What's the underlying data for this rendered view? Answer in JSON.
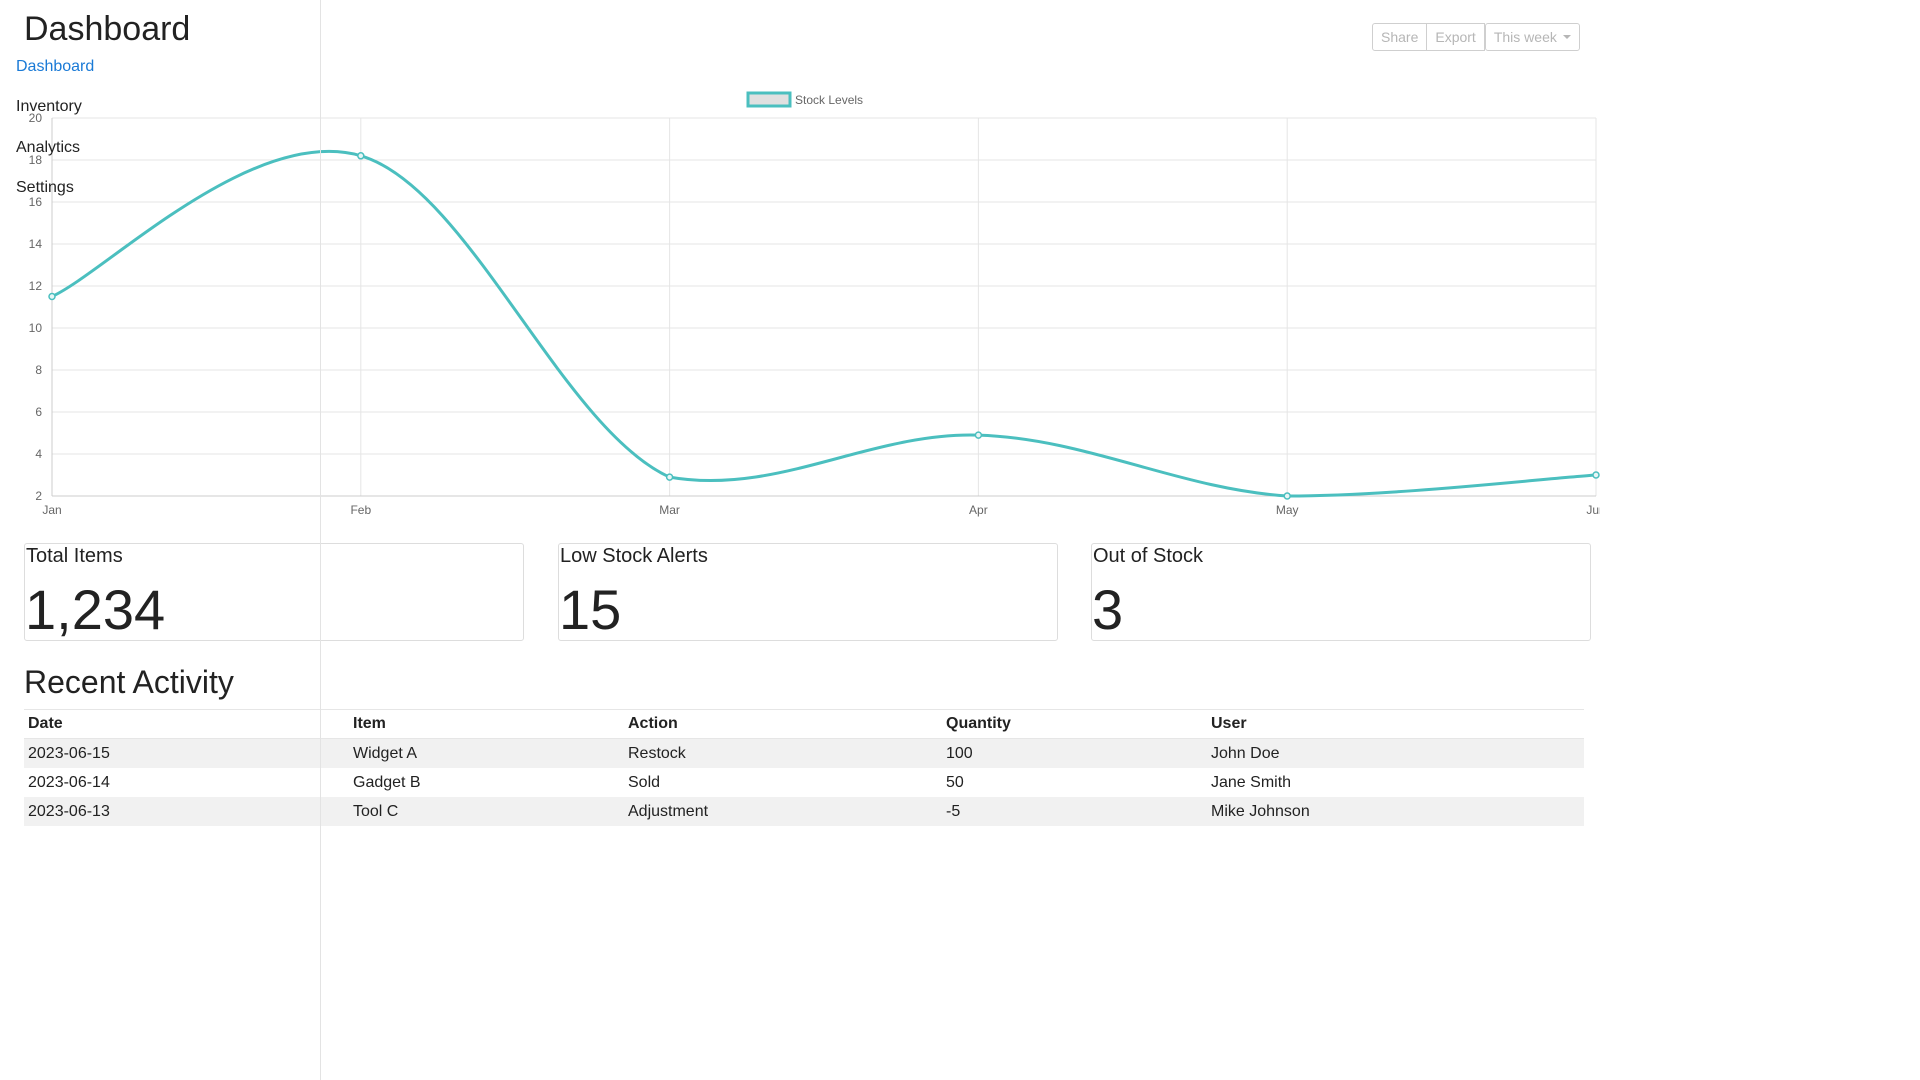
{
  "sidebar": {
    "title": "Dashboard",
    "items": [
      {
        "label": "Dashboard",
        "active": true
      },
      {
        "label": "Inventory"
      },
      {
        "label": "Analytics"
      },
      {
        "label": "Settings"
      }
    ]
  },
  "toolbar": {
    "share_label": "Share",
    "export_label": "Export",
    "period_label": "This week"
  },
  "chart_data": {
    "type": "line",
    "categories": [
      "Jan",
      "Feb",
      "Mar",
      "Apr",
      "May",
      "Jun"
    ],
    "series": [
      {
        "name": "Stock Levels",
        "values": [
          11.5,
          18.2,
          2.9,
          4.9,
          2.0,
          3.0
        ]
      }
    ],
    "ylim": [
      2,
      20
    ],
    "yticks": [
      2,
      4,
      6,
      8,
      10,
      12,
      14,
      16,
      18,
      20
    ],
    "grid": true,
    "legend": "top-center",
    "color": "#4bbfbf"
  },
  "stats": {
    "total_items": {
      "title": "Total Items",
      "value": "1,234"
    },
    "low_stock": {
      "title": "Low Stock Alerts",
      "value": "15"
    },
    "out_of_stock": {
      "title": "Out of Stock",
      "value": "3"
    }
  },
  "activity": {
    "title": "Recent Activity",
    "columns": [
      "Date",
      "Item",
      "Action",
      "Quantity",
      "User"
    ],
    "rows": [
      [
        "2023-06-15",
        "Widget A",
        "Restock",
        "100",
        "John Doe"
      ],
      [
        "2023-06-14",
        "Gadget B",
        "Sold",
        "50",
        "Jane Smith"
      ],
      [
        "2023-06-13",
        "Tool C",
        "Adjustment",
        "-5",
        "Mike Johnson"
      ]
    ]
  }
}
